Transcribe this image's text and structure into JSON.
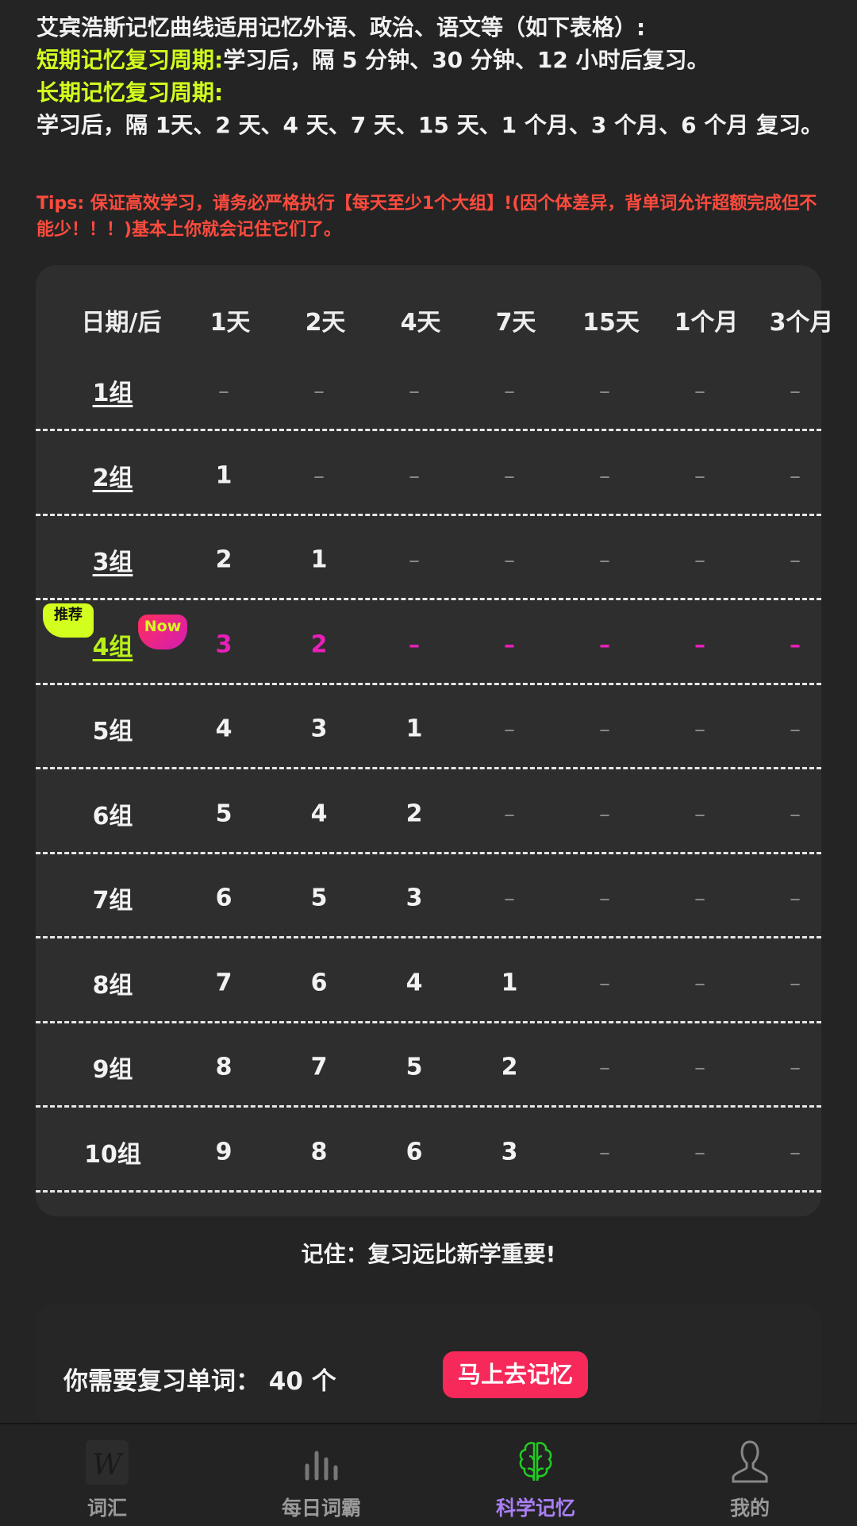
{
  "intro": {
    "line1": "艾宾浩斯记忆曲线适用记忆外语、政治、语文等（如下表格）:",
    "short_label": "短期记忆复习周期:",
    "short_text": "学习后，隔 5 分钟、30 分钟、12 小时后复习。",
    "long_label": "长期记忆复习周期:",
    "long_text": "学习后，隔 1天、2 天、4 天、7 天、15 天、1 个月、3 个月、6 个月 复习。"
  },
  "tips": "Tips: 保证高效学习，请务必严格执行【每天至少1个大组】!(因个体差异，背单词允许超额完成但不能少！！！)基本上你就会记住它们了。",
  "table": {
    "headers": [
      "日期/后",
      "1天",
      "2天",
      "4天",
      "7天",
      "15天",
      "1个月",
      "3个月"
    ],
    "empty": "–",
    "recommend_badge": "推荐",
    "now_badge": "Now",
    "highlight_row": 3,
    "rows": [
      {
        "label": "1组",
        "values": [
          null,
          null,
          null,
          null,
          null,
          null,
          null
        ]
      },
      {
        "label": "2组",
        "values": [
          "1",
          null,
          null,
          null,
          null,
          null,
          null
        ]
      },
      {
        "label": "3组",
        "values": [
          "2",
          "1",
          null,
          null,
          null,
          null,
          null
        ]
      },
      {
        "label": "4组",
        "values": [
          "3",
          "2",
          null,
          null,
          null,
          null,
          null
        ]
      },
      {
        "label": "5组",
        "values": [
          "4",
          "3",
          "1",
          null,
          null,
          null,
          null
        ]
      },
      {
        "label": "6组",
        "values": [
          "5",
          "4",
          "2",
          null,
          null,
          null,
          null
        ]
      },
      {
        "label": "7组",
        "values": [
          "6",
          "5",
          "3",
          null,
          null,
          null,
          null
        ]
      },
      {
        "label": "8组",
        "values": [
          "7",
          "6",
          "4",
          "1",
          null,
          null,
          null
        ]
      },
      {
        "label": "9组",
        "values": [
          "8",
          "7",
          "5",
          "2",
          null,
          null,
          null
        ]
      },
      {
        "label": "10组",
        "values": [
          "9",
          "8",
          "6",
          "3",
          null,
          null,
          null
        ]
      }
    ]
  },
  "remember": "记住：复习远比新学重要!",
  "review": {
    "text": "你需要复习单词：",
    "count": "40",
    "unit": "个",
    "button": "马上去记忆"
  },
  "tabs": [
    {
      "label": "词汇",
      "icon": "w-logo-icon"
    },
    {
      "label": "每日词霸",
      "icon": "bars-icon"
    },
    {
      "label": "科学记忆",
      "icon": "brain-icon",
      "active": true
    },
    {
      "label": "我的",
      "icon": "person-icon"
    }
  ],
  "colors": {
    "accent": "#d2ff1e",
    "tips": "#ff4b3e",
    "highlight": "#e81fb8",
    "button": "#f7285a",
    "active_tab": "#a97ff2",
    "brain": "#22cc22"
  }
}
